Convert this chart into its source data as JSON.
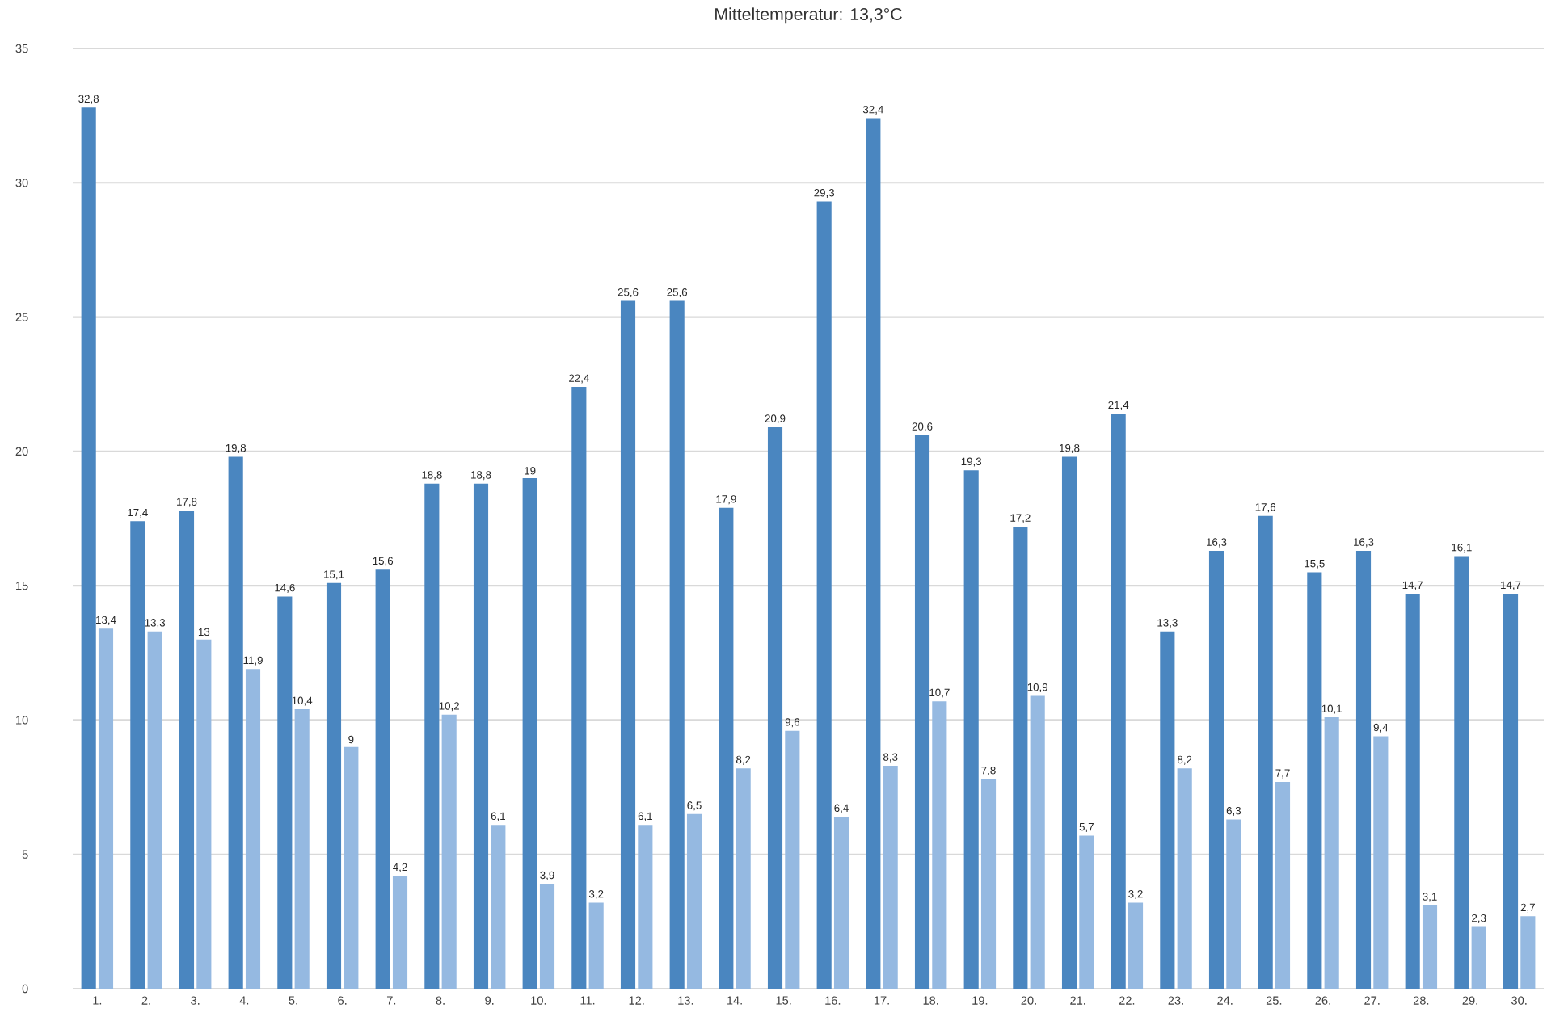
{
  "chart_data": {
    "type": "bar",
    "title": "Mitteltemperatur: 13,3°C",
    "categories": [
      "1.",
      "2.",
      "3.",
      "4.",
      "5.",
      "6.",
      "7.",
      "8.",
      "9.",
      "10.",
      "11.",
      "12.",
      "13.",
      "14.",
      "15.",
      "16.",
      "17.",
      "18.",
      "19.",
      "20.",
      "21.",
      "22.",
      "23.",
      "24.",
      "25.",
      "26.",
      "27.",
      "28.",
      "29.",
      "30."
    ],
    "series": [
      {
        "color": "#4a86c0",
        "values": [
          32.8,
          17.4,
          17.8,
          19.8,
          14.6,
          15.1,
          15.6,
          18.8,
          18.8,
          19,
          22.4,
          25.6,
          25.6,
          17.9,
          20.9,
          29.3,
          32.4,
          20.6,
          19.3,
          17.2,
          19.8,
          21.4,
          13.3,
          16.3,
          17.6,
          15.5,
          16.3,
          14.7,
          16.1,
          14.7
        ],
        "value_labels": [
          "32,8",
          "17,4",
          "17,8",
          "19,8",
          "14,6",
          "15,1",
          "15,6",
          "18,8",
          "18,8",
          "19",
          "22,4",
          "25,6",
          "25,6",
          "17,9",
          "20,9",
          "29,3",
          "32,4",
          "20,6",
          "19,3",
          "17,2",
          "19,8",
          "21,4",
          "13,3",
          "16,3",
          "17,6",
          "15,5",
          "16,3",
          "14,7",
          "16,1",
          "14,7"
        ]
      },
      {
        "color": "#95b9e1",
        "values": [
          13.4,
          13.3,
          13,
          11.9,
          10.4,
          9,
          4.2,
          10.2,
          6.1,
          3.9,
          3.2,
          6.1,
          6.5,
          8.2,
          9.6,
          6.4,
          8.3,
          10.7,
          7.8,
          10.9,
          5.7,
          3.2,
          8.2,
          6.3,
          7.7,
          10.1,
          9.4,
          3.1,
          2.3,
          2.7
        ],
        "value_labels": [
          "13,4",
          "13,3",
          "13",
          "11,9",
          "10,4",
          "9",
          "4,2",
          "10,2",
          "6,1",
          "3,9",
          "3,2",
          "6,1",
          "6,5",
          "8,2",
          "9,6",
          "6,4",
          "8,3",
          "10,7",
          "7,8",
          "10,9",
          "5,7",
          "3,2",
          "8,2",
          "6,3",
          "7,7",
          "10,1",
          "9,4",
          "3,1",
          "2,3",
          "2,7"
        ]
      }
    ],
    "ylim": [
      0,
      35
    ],
    "yticks": [
      0,
      5,
      10,
      15,
      20,
      25,
      30,
      35
    ],
    "grid": "y"
  }
}
